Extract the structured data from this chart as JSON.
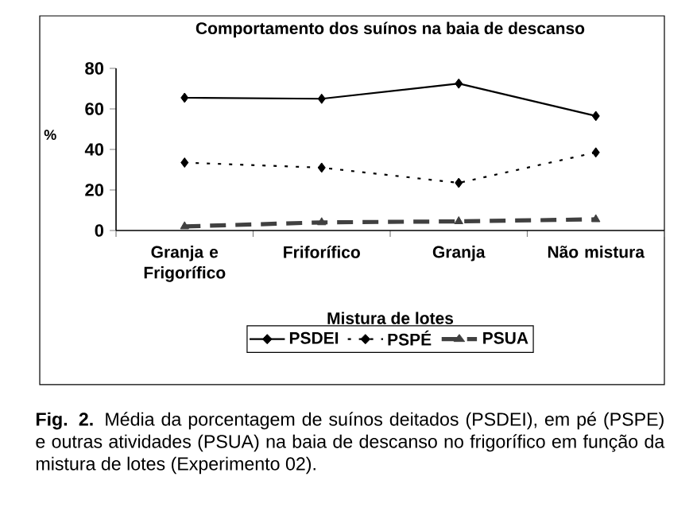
{
  "chart_data": {
    "type": "line",
    "title": "Comportamento dos suínos na baia de descanso",
    "xlabel": "Mistura de lotes",
    "ylabel": "%",
    "categories": [
      "Granja e Frigorífico",
      "Friforífico",
      "Granja",
      "Não mistura"
    ],
    "series": [
      {
        "name": "PSDEI",
        "color": "#000000",
        "marker": "diamond",
        "line_style": "solid",
        "values": [
          65.5,
          65,
          72.5,
          56.5
        ]
      },
      {
        "name": "PSPÉ",
        "color": "#000000",
        "marker": "diamond",
        "line_style": "dotted",
        "values": [
          33.5,
          31,
          23.5,
          38.5
        ]
      },
      {
        "name": "PSUA",
        "color": "#404040",
        "marker": "triangle",
        "line_style": "dashed",
        "values": [
          2,
          4,
          4.5,
          5.5
        ]
      }
    ],
    "ylim": [
      0,
      80
    ],
    "yticks": [
      0,
      20,
      40,
      60,
      80
    ],
    "legend": "bottom",
    "grid": false,
    "annotations": [
      "**Fig. 2.** Média da porcentagem de suínos deitados (PSDEI), em pé (PSPE) e outras atividades (PSUA) na baia de descanso no frigorífico em função da mistura de lotes (Experimento 02)."
    ]
  }
}
